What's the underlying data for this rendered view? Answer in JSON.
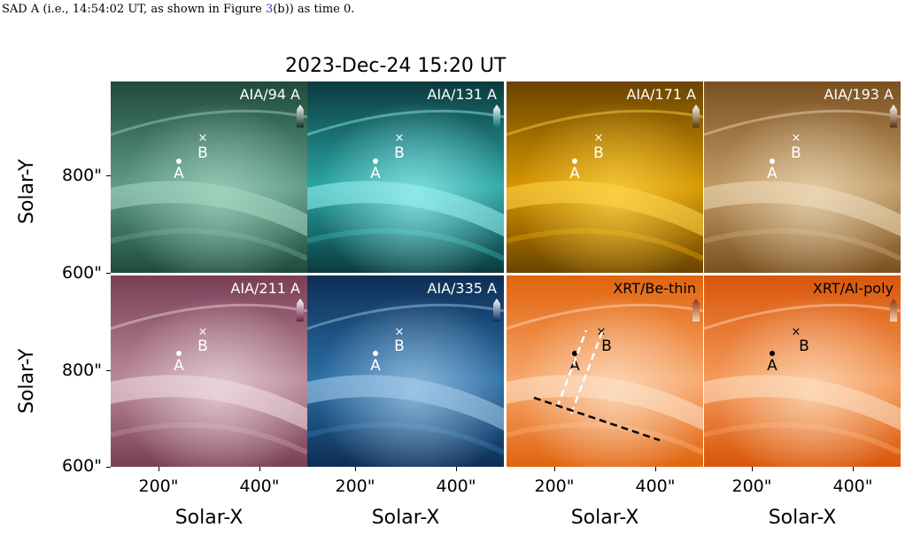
{
  "caption": {
    "prefix": "SAD A (i.e., 14:54:02 UT, as shown in Figure ",
    "ref": "3",
    "suffix": "(b)) as time 0."
  },
  "figure": {
    "title": "2023-Dec-24 15:20 UT",
    "ylabel": "Solar-Y",
    "xlabel": "Solar-X",
    "yticks": [
      "800\"",
      "600\""
    ],
    "xticks": [
      "200\"",
      "400\""
    ],
    "point_a": "A",
    "point_b": "B",
    "point_b_marker": "×",
    "panels": [
      {
        "label": "AIA/94 A",
        "c1": "#1f4a3a",
        "c2": "#5f9a86",
        "c3": "#a8d8c4",
        "text": "#ffffff",
        "bar_top": "#ffffff",
        "bar_bot": "#0d3326"
      },
      {
        "label": "AIA/131 A",
        "c1": "#0b3a3e",
        "c2": "#2aa5a5",
        "c3": "#9af2f0",
        "text": "#ffffff",
        "bar_top": "#ffffff",
        "bar_bot": "#0a7070"
      },
      {
        "label": "AIA/171 A",
        "c1": "#6a4300",
        "c2": "#d69600",
        "c3": "#ffd64a",
        "text": "#ffffff",
        "bar_top": "#ffffff",
        "bar_bot": "#5a3a00"
      },
      {
        "label": "AIA/193 A",
        "c1": "#7a5020",
        "c2": "#c09a64",
        "c3": "#efdcbc",
        "text": "#ffffff",
        "bar_top": "#ffffff",
        "bar_bot": "#5a3010"
      },
      {
        "label": "AIA/211 A",
        "c1": "#7a3e55",
        "c2": "#b8899a",
        "c3": "#f0dce4",
        "text": "#ffffff",
        "bar_top": "#ffffff",
        "bar_bot": "#6a2040"
      },
      {
        "label": "AIA/335 A",
        "c1": "#0d2e55",
        "c2": "#2c6fa6",
        "c3": "#a9cfee",
        "text": "#ffffff",
        "bar_top": "#ffffff",
        "bar_bot": "#0a2a60"
      },
      {
        "label": "XRT/Be-thin",
        "c1": "#e0640e",
        "c2": "#f7a66a",
        "c3": "#fde3cb",
        "text": "#000000",
        "bar_top": "#8a3208",
        "bar_bot": "#fbd2b4"
      },
      {
        "label": "XRT/Al-poly",
        "c1": "#d9560a",
        "c2": "#f49a5a",
        "c3": "#fde0c4",
        "text": "#000000",
        "bar_top": "#8a3208",
        "bar_bot": "#fbd2b4"
      }
    ]
  }
}
